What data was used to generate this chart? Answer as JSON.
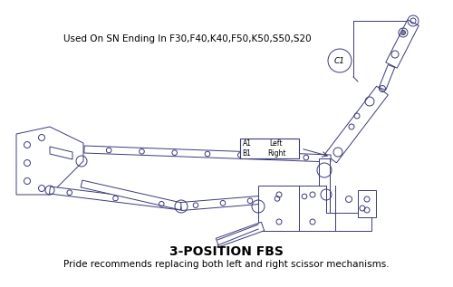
{
  "title": "3-POSITION FBS",
  "subtitle": "Pride recommends replacing both left and right scissor mechanisms.",
  "header": "Used On SN Ending In F30,F40,K40,F50,K50,S50,S20",
  "label_a1": "A1",
  "label_b1": "B1",
  "label_left": "Left",
  "label_right": "Right",
  "label_c1": "C1",
  "line_color": "#3a3a7a",
  "bg_color": "#ffffff",
  "text_color": "#000000",
  "title_fontsize": 10,
  "subtitle_fontsize": 7.5,
  "header_fontsize": 7.5,
  "lw": 0.7
}
